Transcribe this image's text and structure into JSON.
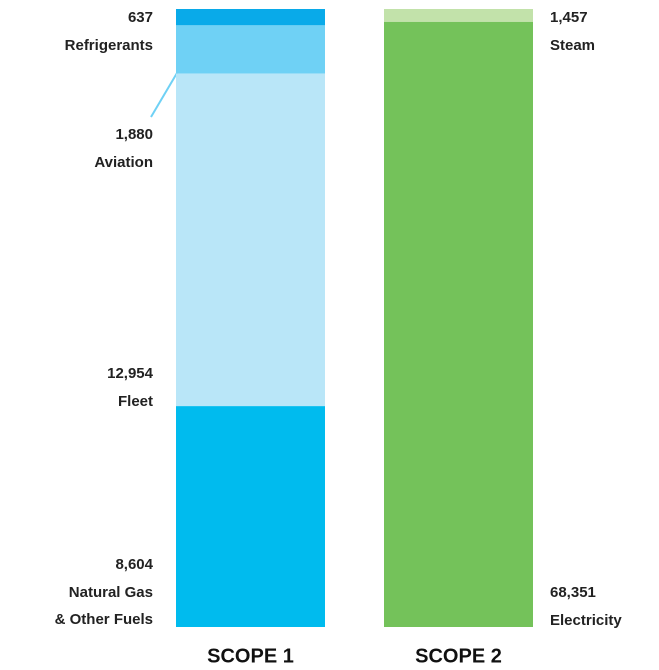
{
  "chart_data": {
    "type": "stacked_bar",
    "bars": [
      {
        "label": "SCOPE 1",
        "segments": [
          {
            "name": "Refrigerants",
            "value": 637,
            "value_label": "637",
            "color": "#09aae9"
          },
          {
            "name": "Aviation",
            "value": 1880,
            "value_label": "1,880",
            "color": "#6fd1f5"
          },
          {
            "name": "Fleet",
            "value": 12954,
            "value_label": "12,954",
            "color": "#b9e6f8"
          },
          {
            "name": [
              "Natural Gas",
              "& Other Fuels"
            ],
            "value": 8604,
            "value_label": "8,604",
            "color": "#00bbee"
          }
        ]
      },
      {
        "label": "SCOPE 2",
        "segments": [
          {
            "name": "Steam",
            "value": 1457,
            "value_label": "1,457",
            "color": "#c2e2aa"
          },
          {
            "name": "Electricity",
            "value": 68351,
            "value_label": "68,351",
            "color": "#74c25a"
          }
        ]
      }
    ]
  }
}
